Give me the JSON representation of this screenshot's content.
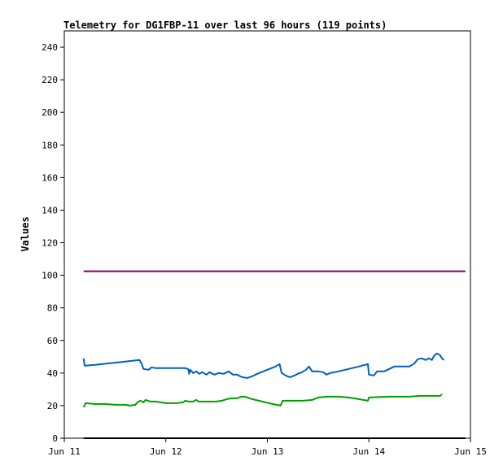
{
  "chart_data": {
    "type": "line",
    "title": "Telemetry for DG1FBP-11 over last 96 hours (119 points)",
    "ylabel": "Values",
    "xlabel": "",
    "ylim": [
      0,
      250
    ],
    "xlim": [
      0,
      4
    ],
    "x_unit": "days after Jun 11 00:00",
    "y_ticks": [
      0,
      20,
      40,
      60,
      80,
      100,
      120,
      140,
      160,
      180,
      200,
      220,
      240
    ],
    "x_ticks": [
      {
        "label": "Jun 11",
        "x": 0
      },
      {
        "label": "Jun 12",
        "x": 1
      },
      {
        "label": "Jun 13",
        "x": 2
      },
      {
        "label": "Jun 14",
        "x": 3
      },
      {
        "label": "Jun 15",
        "x": 4
      }
    ],
    "grid": false,
    "legend": "none",
    "series": [
      {
        "color": "#800060",
        "points": [
          [
            0.19,
            102.5
          ],
          [
            3.95,
            102.5
          ]
        ]
      },
      {
        "color": "#0060c0",
        "points": [
          [
            0.19,
            49
          ],
          [
            0.2,
            44.5
          ],
          [
            0.3,
            45
          ],
          [
            0.45,
            46
          ],
          [
            0.6,
            47
          ],
          [
            0.74,
            48
          ],
          [
            0.76,
            46
          ],
          [
            0.78,
            42.5
          ],
          [
            0.83,
            42
          ],
          [
            0.86,
            43.5
          ],
          [
            0.9,
            43
          ],
          [
            1.0,
            43
          ],
          [
            1.05,
            43
          ],
          [
            1.12,
            43
          ],
          [
            1.18,
            43
          ],
          [
            1.19,
            43
          ],
          [
            1.22,
            42.5
          ],
          [
            1.23,
            39.5
          ],
          [
            1.24,
            42
          ],
          [
            1.27,
            40
          ],
          [
            1.3,
            41
          ],
          [
            1.33,
            39.5
          ],
          [
            1.36,
            40.5
          ],
          [
            1.4,
            39
          ],
          [
            1.43,
            40.5
          ],
          [
            1.48,
            39
          ],
          [
            1.52,
            40
          ],
          [
            1.57,
            39.5
          ],
          [
            1.62,
            41
          ],
          [
            1.66,
            39
          ],
          [
            1.7,
            39
          ],
          [
            1.75,
            37.5
          ],
          [
            1.8,
            37
          ],
          [
            1.85,
            38
          ],
          [
            1.9,
            39.5
          ],
          [
            2.0,
            42
          ],
          [
            2.08,
            44
          ],
          [
            2.12,
            45.5
          ],
          [
            2.14,
            40
          ],
          [
            2.18,
            38.5
          ],
          [
            2.22,
            37.5
          ],
          [
            2.27,
            38.5
          ],
          [
            2.3,
            39.5
          ],
          [
            2.34,
            40.5
          ],
          [
            2.38,
            42
          ],
          [
            2.41,
            44
          ],
          [
            2.44,
            41
          ],
          [
            2.5,
            41
          ],
          [
            2.55,
            40.5
          ],
          [
            2.58,
            39
          ],
          [
            2.62,
            40
          ],
          [
            2.7,
            41
          ],
          [
            2.8,
            42.5
          ],
          [
            2.9,
            44
          ],
          [
            2.99,
            45.5
          ],
          [
            3.0,
            39
          ],
          [
            3.05,
            38.5
          ],
          [
            3.08,
            41
          ],
          [
            3.15,
            41
          ],
          [
            3.2,
            42.5
          ],
          [
            3.25,
            44
          ],
          [
            3.35,
            44
          ],
          [
            3.4,
            44
          ],
          [
            3.45,
            46
          ],
          [
            3.48,
            48.5
          ],
          [
            3.52,
            49
          ],
          [
            3.56,
            48
          ],
          [
            3.59,
            49
          ],
          [
            3.62,
            48
          ],
          [
            3.64,
            50.5
          ],
          [
            3.67,
            52
          ],
          [
            3.7,
            51
          ],
          [
            3.72,
            49
          ],
          [
            3.74,
            48
          ]
        ]
      },
      {
        "color": "#00a000",
        "points": [
          [
            0.19,
            19
          ],
          [
            0.21,
            21.5
          ],
          [
            0.3,
            21
          ],
          [
            0.4,
            21
          ],
          [
            0.5,
            20.5
          ],
          [
            0.6,
            20.5
          ],
          [
            0.65,
            20
          ],
          [
            0.7,
            20.5
          ],
          [
            0.72,
            22
          ],
          [
            0.75,
            23
          ],
          [
            0.78,
            22
          ],
          [
            0.8,
            23.5
          ],
          [
            0.85,
            22.5
          ],
          [
            0.9,
            22.5
          ],
          [
            0.95,
            22
          ],
          [
            1.0,
            21.5
          ],
          [
            1.1,
            21.5
          ],
          [
            1.17,
            22
          ],
          [
            1.19,
            23
          ],
          [
            1.22,
            22.5
          ],
          [
            1.27,
            22.5
          ],
          [
            1.3,
            23.5
          ],
          [
            1.32,
            22.5
          ],
          [
            1.4,
            22.5
          ],
          [
            1.5,
            22.5
          ],
          [
            1.55,
            23
          ],
          [
            1.6,
            24
          ],
          [
            1.65,
            24.5
          ],
          [
            1.7,
            24.5
          ],
          [
            1.74,
            25.5
          ],
          [
            1.78,
            25.5
          ],
          [
            1.85,
            24
          ],
          [
            1.95,
            22.5
          ],
          [
            2.05,
            21
          ],
          [
            2.13,
            20
          ],
          [
            2.15,
            23
          ],
          [
            2.25,
            23
          ],
          [
            2.35,
            23
          ],
          [
            2.44,
            23.5
          ],
          [
            2.5,
            25
          ],
          [
            2.6,
            25.5
          ],
          [
            2.7,
            25.5
          ],
          [
            2.8,
            25
          ],
          [
            2.9,
            24
          ],
          [
            2.99,
            23
          ],
          [
            3.0,
            25
          ],
          [
            3.2,
            25.5
          ],
          [
            3.4,
            25.5
          ],
          [
            3.5,
            26
          ],
          [
            3.7,
            26
          ],
          [
            3.72,
            27
          ]
        ]
      },
      {
        "color": "#000000",
        "points": [
          [
            0.19,
            0
          ],
          [
            3.95,
            0
          ]
        ]
      }
    ]
  }
}
